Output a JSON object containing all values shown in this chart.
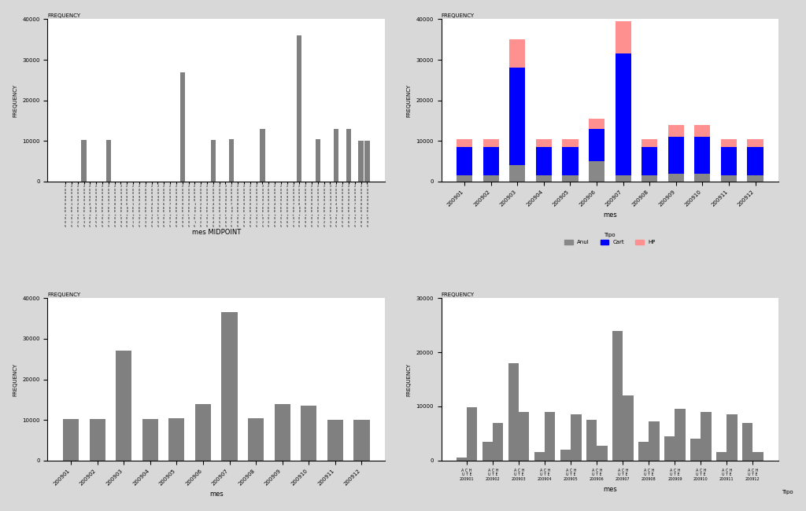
{
  "background_color": "#d8d8d8",
  "chart_bg": "#ffffff",
  "bar_color_gray": "#808080",
  "bar_color_blue": "#0000ff",
  "bar_color_salmon": "#ff9090",
  "bar_color_darkgray": "#888888",
  "top_left": {
    "title": "FREQUENCY",
    "ylabel": "FREQUENCY",
    "xlabel": "mes MIDPOINT",
    "ylim": [
      0,
      40000
    ],
    "yticks": [
      0,
      10000,
      20000,
      30000,
      40000
    ],
    "n_bars": 50,
    "bar_positions": [
      3,
      7,
      19,
      24,
      27,
      32,
      38,
      41,
      44,
      46,
      48,
      49
    ],
    "bar_values": [
      10300,
      10300,
      27000,
      10300,
      10500,
      13000,
      36000,
      10500,
      13000,
      13000,
      10000,
      10100
    ]
  },
  "top_right": {
    "title": "FREQUENCY",
    "ylabel": "FREQUENCY",
    "xlabel": "mes",
    "legend_title": "Tipo",
    "ylim": [
      0,
      40000
    ],
    "yticks": [
      0,
      10000,
      20000,
      30000,
      40000
    ],
    "categories": [
      "200901",
      "200902",
      "200903",
      "200904",
      "200905",
      "200906",
      "200907",
      "200908",
      "200909",
      "200910",
      "200911",
      "200912"
    ],
    "anul": [
      1500,
      1500,
      4000,
      1500,
      1500,
      5000,
      1500,
      1500,
      2000,
      2000,
      1500,
      1500
    ],
    "cart": [
      7000,
      7000,
      24000,
      7000,
      7000,
      8000,
      30000,
      7000,
      9000,
      9000,
      7000,
      7000
    ],
    "hp": [
      2000,
      2000,
      7000,
      2000,
      2000,
      2500,
      8000,
      2000,
      3000,
      3000,
      2000,
      2000
    ]
  },
  "bottom_left": {
    "title": "FREQUENCY",
    "ylabel": "FREQUENCY",
    "xlabel": "mes",
    "ylim": [
      0,
      40000
    ],
    "yticks": [
      0,
      10000,
      20000,
      30000,
      40000
    ],
    "categories": [
      "200901",
      "200902",
      "200903",
      "200904",
      "200905",
      "200906",
      "200907",
      "200908",
      "200909",
      "200910",
      "200911",
      "200912"
    ],
    "values": [
      10300,
      10300,
      27000,
      10300,
      10500,
      14000,
      36500,
      10500,
      14000,
      13500,
      10000,
      10100
    ]
  },
  "bottom_right": {
    "title": "FREQUENCY",
    "ylabel": "FREQUENCY",
    "xlabel": "mes",
    "ylim": [
      0,
      30000
    ],
    "yticks": [
      0,
      10000,
      20000,
      30000
    ],
    "categories": [
      "200901",
      "200902",
      "200903",
      "200904",
      "200905",
      "200906",
      "200907",
      "200908",
      "200909",
      "200910",
      "200911",
      "200912"
    ],
    "ach_values": [
      500,
      3500,
      18000,
      1500,
      2000,
      7500,
      24000,
      3500,
      4500,
      4000,
      1500,
      7000
    ],
    "ute_values": [
      9800,
      7000,
      9000,
      9000,
      8500,
      2800,
      12000,
      7200,
      9500,
      9000,
      8500,
      1500
    ],
    "legend_label": "Tipo"
  }
}
